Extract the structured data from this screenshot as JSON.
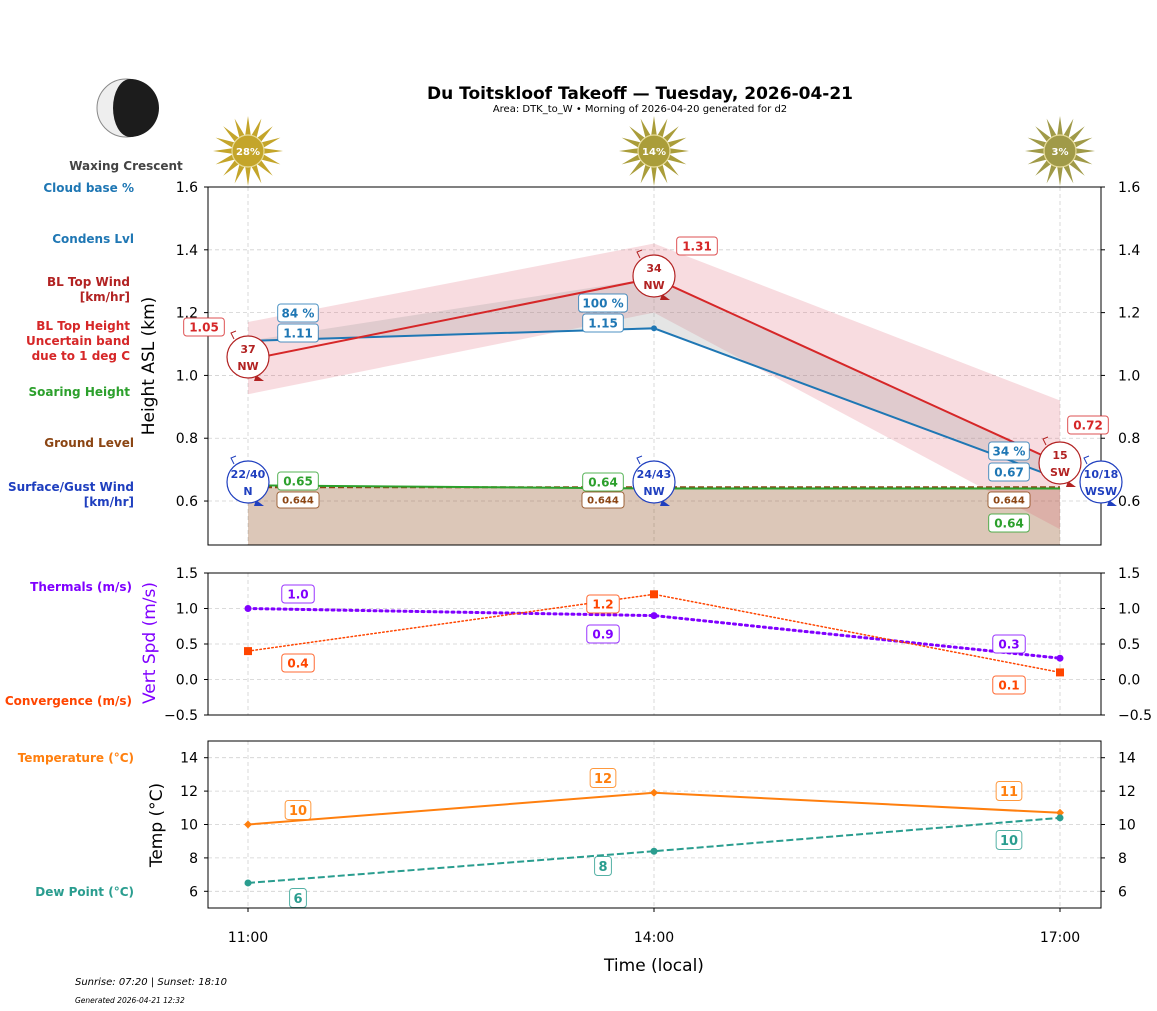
{
  "title": "Du Toitskloof Takeoff — Tuesday, 2026-04-21",
  "subtitle": "Area: DTK_to_W • Morning of 2026-04-20 generated for d2",
  "moon": {
    "phase": "Waxing Crescent",
    "icon": "moon-waxing-crescent-icon"
  },
  "legend_labels": {
    "cloud_base": "Cloud base %",
    "condens": "Condens Lvl",
    "bl_wind_1": "BL Top Wind",
    "bl_wind_2": "[km/hr]",
    "bl_height_1": "BL Top Height",
    "bl_height_2": "Uncertain band",
    "bl_height_3": "due to 1 deg C",
    "soaring": "Soaring Height",
    "ground": "Ground Level",
    "surface_1": "Surface/Gust Wind",
    "surface_2": "[km/hr]",
    "thermals": "Thermals (m/s)",
    "convergence": "Convergence (m/s)",
    "temperature": "Temperature (°C)",
    "dewpoint": "Dew Point (°C)"
  },
  "colors": {
    "cloud": "#1f77b4",
    "bl_wind": "#b22222",
    "bl_top": "#d62728",
    "soaring": "#2ca02c",
    "ground": "#8b4513",
    "surface_wind": "#1f3fbf",
    "thermals": "#8000ff",
    "convergence": "#ff4500",
    "temperature": "#ff7f0e",
    "dewpoint": "#2a9d8f",
    "sun": "#c8a32a"
  },
  "footer": {
    "sun_times": "Sunrise: 07:20 | Sunset: 18:10",
    "generated": "Generated 2026-04-21 12:32"
  },
  "chart_data": [
    {
      "type": "line",
      "ylabel": "Height ASL (km)",
      "ylim": [
        0.46,
        1.6
      ],
      "yticks": [
        "0.6",
        "0.8",
        "1.0",
        "1.2",
        "1.4",
        "1.6"
      ],
      "x": [
        "11:00",
        "14:00",
        "17:00"
      ],
      "grid": true,
      "sun_percent": [
        "28%",
        "14%",
        "3%"
      ],
      "bl_top_height": [
        1.05,
        1.31,
        0.72
      ],
      "bl_top_band_low": [
        0.94,
        1.2,
        0.51
      ],
      "bl_top_band_high": [
        1.17,
        1.42,
        0.92
      ],
      "condens_lvl": [
        1.11,
        1.15,
        0.67
      ],
      "cloud_base_pct": [
        "84 %",
        "100 %",
        "34 %"
      ],
      "soaring_height": [
        0.65,
        0.64,
        0.64
      ],
      "ground_level": [
        0.644,
        0.644,
        0.644
      ],
      "bl_top_wind": [
        {
          "speed": "37",
          "dir": "NW"
        },
        {
          "speed": "34",
          "dir": "NW"
        },
        {
          "speed": "15",
          "dir": "SW"
        }
      ],
      "surface_wind": [
        {
          "speed": "22/40",
          "dir": "N"
        },
        {
          "speed": "24/43",
          "dir": "NW"
        },
        {
          "speed": "10/18",
          "dir": "WSW"
        }
      ]
    },
    {
      "type": "line",
      "ylabel": "Vert Spd (m/s)",
      "ylim": [
        -0.5,
        1.5
      ],
      "yticks": [
        "−0.5",
        "0.0",
        "0.5",
        "1.0",
        "1.5"
      ],
      "x": [
        "11:00",
        "14:00",
        "17:00"
      ],
      "grid": true,
      "series": [
        {
          "name": "Thermals (m/s)",
          "values": [
            1.0,
            0.9,
            0.3
          ]
        },
        {
          "name": "Convergence (m/s)",
          "values": [
            0.4,
            1.2,
            0.1
          ]
        }
      ]
    },
    {
      "type": "line",
      "ylabel": "Temp (°C)",
      "xlabel": "Time (local)",
      "ylim": [
        5,
        15
      ],
      "yticks": [
        "6",
        "8",
        "10",
        "12",
        "14"
      ],
      "x": [
        "11:00",
        "14:00",
        "17:00"
      ],
      "grid": true,
      "series": [
        {
          "name": "Temperature (°C)",
          "values": [
            10.0,
            11.9,
            10.7
          ],
          "labels": [
            "10",
            "12",
            "11"
          ]
        },
        {
          "name": "Dew Point (°C)",
          "values": [
            6.5,
            8.4,
            10.4
          ],
          "labels": [
            "6",
            "8",
            "10"
          ]
        }
      ]
    }
  ]
}
